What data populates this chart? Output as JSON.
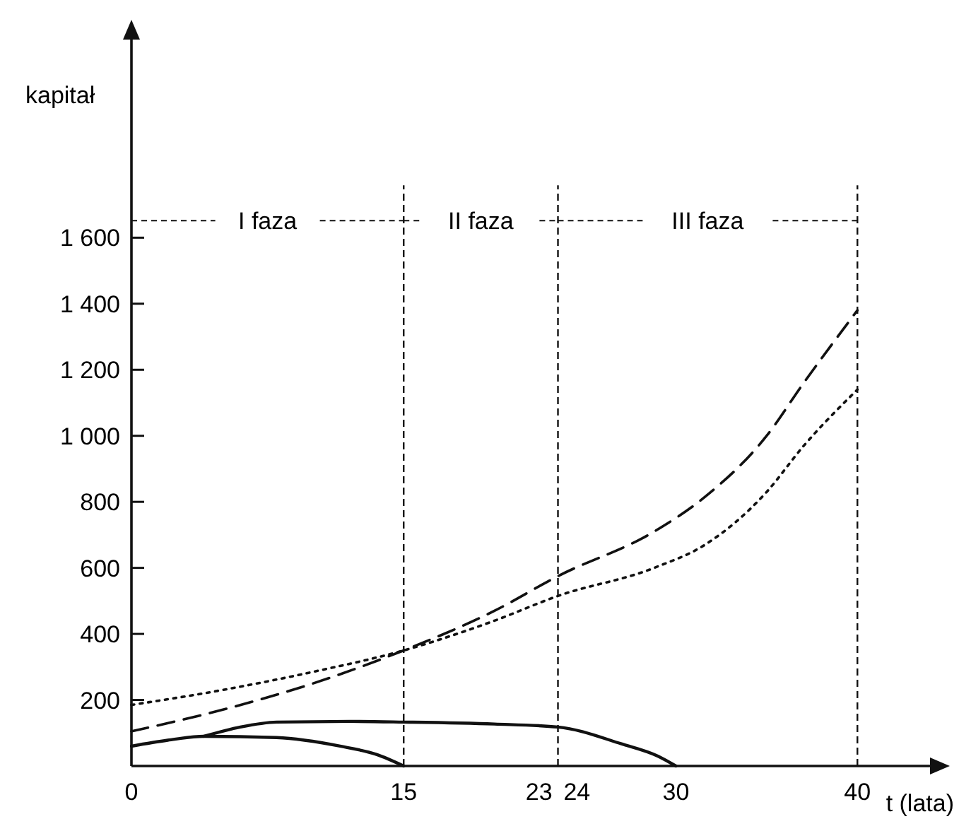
{
  "chart_data": {
    "type": "line",
    "xlabel": "t (lata)",
    "ylabel": "kapitał",
    "xlim": [
      0,
      44
    ],
    "xticks": [
      0,
      15,
      23,
      24,
      30,
      40
    ],
    "ylim": [
      0,
      2200
    ],
    "yticks": [
      200,
      400,
      600,
      800,
      {
        "value": 1000,
        "label": "1 000"
      },
      {
        "value": 1200,
        "label": "1 200"
      },
      {
        "value": 1400,
        "label": "1 400"
      },
      {
        "value": 1600,
        "label": "1 600"
      }
    ],
    "grid": false,
    "series": [
      {
        "color": "#111111",
        "line_style": "dashed",
        "x": [
          0,
          5,
          10,
          15,
          20,
          23.5,
          28.8,
          31.6,
          35,
          37,
          40
        ],
        "values": [
          105,
          170,
          250,
          350,
          470,
          575,
          710,
          815,
          1000,
          1157,
          1380
        ]
      },
      {
        "color": "#111111",
        "line_style": "dotted",
        "x": [
          0,
          5,
          10,
          15,
          20,
          23.5,
          28.8,
          31.6,
          35,
          37,
          40
        ],
        "values": [
          185,
          230,
          285,
          350,
          440,
          515,
          600,
          670,
          830,
          967,
          1140
        ]
      },
      {
        "color": "#111111",
        "line_style": "solid",
        "x": [
          0,
          2,
          4,
          8,
          11.5,
          13.5,
          15
        ],
        "values": [
          60,
          78,
          90,
          86,
          60,
          35,
          0
        ]
      },
      {
        "color": "#111111",
        "line_style": "solid",
        "x": [
          4,
          6,
          8,
          12,
          15,
          20,
          23.5,
          27,
          29,
          30
        ],
        "values": [
          90,
          118,
          133,
          135,
          133,
          127,
          118,
          67,
          30,
          0
        ]
      }
    ],
    "ref_lines": [
      {
        "axis": "x",
        "value": 15
      },
      {
        "axis": "x",
        "value": 23.5
      },
      {
        "axis": "x",
        "value": 40
      }
    ],
    "annotations": [
      "I faza",
      "II faza",
      "III faza"
    ]
  }
}
